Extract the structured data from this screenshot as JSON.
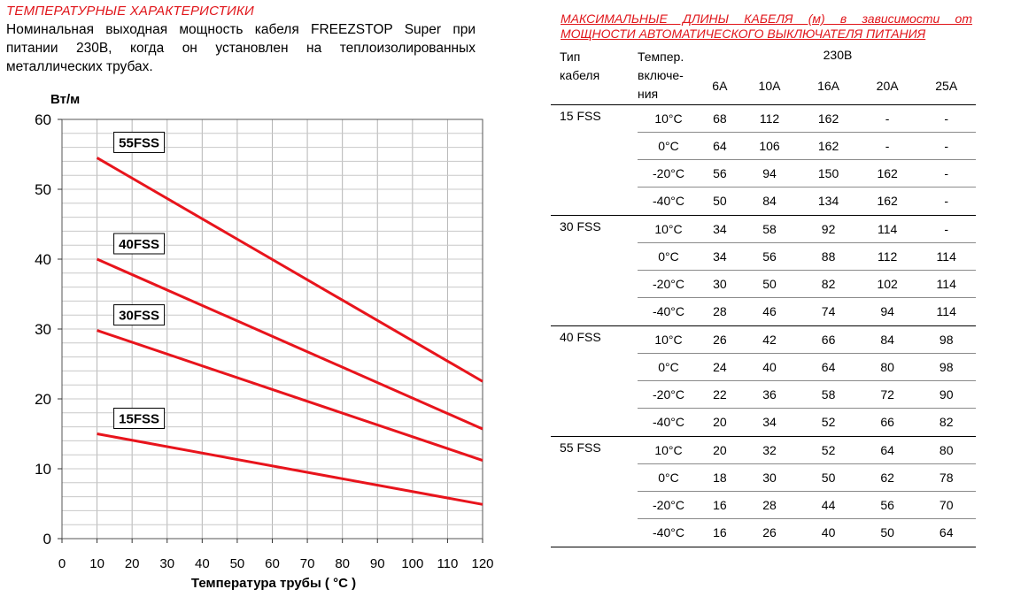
{
  "left": {
    "title": "ТЕМПЕРАТУРНЫЕ ХАРАКТЕРИСТИКИ",
    "description": "Номинальная выходная мощность кабеля FREEZSTOP Super при питании 230В, когда он установлен на теплоизолированных металлических трубах."
  },
  "chart_data": {
    "type": "line",
    "ylabel": "Вт/м",
    "xlabel": "Температура трубы ( °C )",
    "xlim": [
      0,
      120
    ],
    "ylim": [
      0,
      60
    ],
    "x_ticks": [
      "0",
      "10",
      "20",
      "30",
      "40",
      "50",
      "60",
      "70",
      "80",
      "90",
      "100",
      "110",
      "120"
    ],
    "y_ticks": [
      "0",
      "10",
      "20",
      "30",
      "40",
      "50",
      "60"
    ],
    "grid": true,
    "series": [
      {
        "name": "55FSS",
        "x": [
          10,
          120
        ],
        "y": [
          54.5,
          22.5
        ]
      },
      {
        "name": "40FSS",
        "x": [
          10,
          120
        ],
        "y": [
          40,
          15.7
        ]
      },
      {
        "name": "30FSS",
        "x": [
          10,
          120
        ],
        "y": [
          29.8,
          11.2
        ]
      },
      {
        "name": "15FSS",
        "x": [
          10,
          120
        ],
        "y": [
          15,
          4.9
        ]
      }
    ],
    "line_color": "#e8141c"
  },
  "right": {
    "title_line1": "МАКСИМАЛЬНЫЕ ДЛИНЫ КАБЕЛЯ (м) в зависимости от",
    "title_line2": "МОЩНОСТИ АВТОМАТИЧЕСКОГО ВЫКЛЮЧАТЕЛЯ ПИТАНИЯ",
    "col_type": "Тип кабеля",
    "col_temp": "Темпер. включе- ния",
    "voltage": "230В",
    "amps": [
      "6А",
      "10А",
      "16А",
      "20А",
      "25А"
    ],
    "groups": [
      {
        "type": "15 FSS",
        "rows": [
          {
            "t": "10°C",
            "v": [
              "68",
              "112",
              "162",
              "-",
              "-"
            ]
          },
          {
            "t": "0°C",
            "v": [
              "64",
              "106",
              "162",
              "-",
              "-"
            ]
          },
          {
            "t": "-20°C",
            "v": [
              "56",
              "94",
              "150",
              "162",
              "-"
            ]
          },
          {
            "t": "-40°C",
            "v": [
              "50",
              "84",
              "134",
              "162",
              "-"
            ]
          }
        ]
      },
      {
        "type": "30 FSS",
        "rows": [
          {
            "t": "10°C",
            "v": [
              "34",
              "58",
              "92",
              "114",
              "-"
            ]
          },
          {
            "t": "0°C",
            "v": [
              "34",
              "56",
              "88",
              "112",
              "114"
            ]
          },
          {
            "t": "-20°C",
            "v": [
              "30",
              "50",
              "82",
              "102",
              "114"
            ]
          },
          {
            "t": "-40°C",
            "v": [
              "28",
              "46",
              "74",
              "94",
              "114"
            ]
          }
        ]
      },
      {
        "type": "40 FSS",
        "rows": [
          {
            "t": "10°C",
            "v": [
              "26",
              "42",
              "66",
              "84",
              "98"
            ]
          },
          {
            "t": "0°C",
            "v": [
              "24",
              "40",
              "64",
              "80",
              "98"
            ]
          },
          {
            "t": "-20°C",
            "v": [
              "22",
              "36",
              "58",
              "72",
              "90"
            ]
          },
          {
            "t": "-40°C",
            "v": [
              "20",
              "34",
              "52",
              "66",
              "82"
            ]
          }
        ]
      },
      {
        "type": "55 FSS",
        "rows": [
          {
            "t": "10°C",
            "v": [
              "20",
              "32",
              "52",
              "64",
              "80"
            ]
          },
          {
            "t": "0°C",
            "v": [
              "18",
              "30",
              "50",
              "62",
              "78"
            ]
          },
          {
            "t": "-20°C",
            "v": [
              "16",
              "28",
              "44",
              "56",
              "70"
            ]
          },
          {
            "t": "-40°C",
            "v": [
              "16",
              "26",
              "40",
              "50",
              "64"
            ]
          }
        ]
      }
    ]
  }
}
